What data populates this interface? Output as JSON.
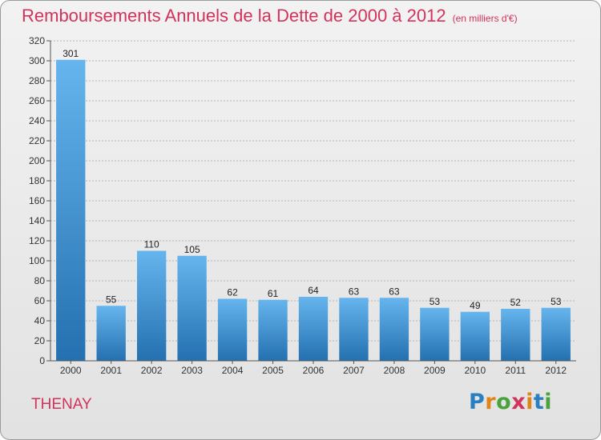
{
  "title": "Remboursements Annuels de la Dette de 2000 à 2012",
  "unit": "(en milliers d'€)",
  "commune": "THENAY",
  "brand": {
    "letters": [
      "P",
      "r",
      "o",
      "x",
      "i",
      "t",
      "i"
    ],
    "colors": [
      "#2a7fc0",
      "#e0851a",
      "#4aa23d",
      "#d2335b",
      "#e0851a",
      "#2a7fc0",
      "#4aa23d"
    ]
  },
  "colors": {
    "title": "#d2335b",
    "bar_top": "#66b5ee",
    "bar_bottom": "#2470b0",
    "grid": "#b4b4b4"
  },
  "chart_data": {
    "type": "bar",
    "title": "Remboursements Annuels de la Dette de 2000 à 2012",
    "unit": "(en milliers d'€)",
    "categories": [
      "2000",
      "2001",
      "2002",
      "2003",
      "2004",
      "2005",
      "2006",
      "2007",
      "2008",
      "2009",
      "2010",
      "2011",
      "2012"
    ],
    "values": [
      301,
      55,
      110,
      105,
      62,
      61,
      64,
      63,
      63,
      53,
      49,
      52,
      53
    ],
    "ylim": [
      0,
      320
    ],
    "yticks": [
      0,
      20,
      40,
      60,
      80,
      100,
      120,
      140,
      160,
      180,
      200,
      220,
      240,
      260,
      280,
      300,
      320
    ],
    "grid": true,
    "data_labels": true
  }
}
